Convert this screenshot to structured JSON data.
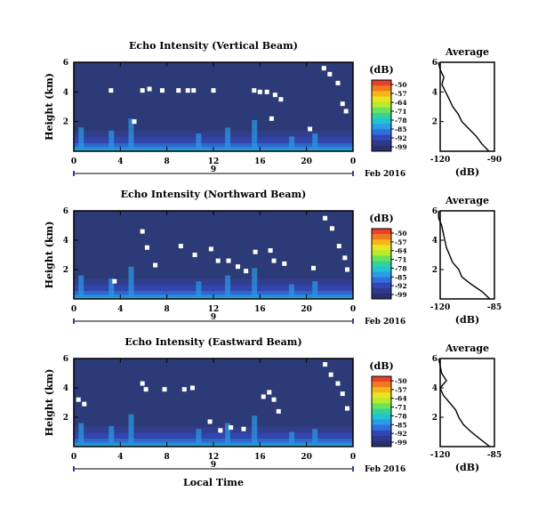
{
  "chart_data": [
    {
      "type": "heatmap",
      "title": "Echo Intensity (Vertical Beam)",
      "ylabel": "Height (km)",
      "xlabel": "",
      "x_ticks": [
        "0",
        "4",
        "8",
        "12",
        "16",
        "20",
        "0"
      ],
      "y_ticks": [
        "6",
        "4",
        "2"
      ],
      "xlim": [
        0,
        24
      ],
      "ylim": [
        0,
        6
      ],
      "date_day": "9",
      "date_label": "Feb 2016",
      "colorbar": {
        "unit": "(dB)",
        "ticks": [
          "-50",
          "-57",
          "-64",
          "-71",
          "-78",
          "-85",
          "-92",
          "-99"
        ]
      },
      "background_color": "#2d3a78",
      "gaps": [
        {
          "t": 3.2,
          "h": 4.1
        },
        {
          "t": 5.9,
          "h": 4.1
        },
        {
          "t": 6.5,
          "h": 4.2
        },
        {
          "t": 7.6,
          "h": 4.1
        },
        {
          "t": 9.0,
          "h": 4.1
        },
        {
          "t": 9.8,
          "h": 4.1
        },
        {
          "t": 10.3,
          "h": 4.1
        },
        {
          "t": 12.0,
          "h": 4.1
        },
        {
          "t": 15.5,
          "h": 4.1
        },
        {
          "t": 16.0,
          "h": 4.0
        },
        {
          "t": 16.6,
          "h": 4.0
        },
        {
          "t": 17.3,
          "h": 3.8
        },
        {
          "t": 17.8,
          "h": 3.5
        },
        {
          "t": 5.2,
          "h": 2.0
        },
        {
          "t": 17.0,
          "h": 2.2
        },
        {
          "t": 20.3,
          "h": 1.5
        },
        {
          "t": 21.5,
          "h": 5.6
        },
        {
          "t": 22.0,
          "h": 5.2
        },
        {
          "t": 22.7,
          "h": 4.6
        },
        {
          "t": 23.1,
          "h": 3.2
        },
        {
          "t": 23.4,
          "h": 2.7
        }
      ],
      "average_profile": {
        "title": "Average",
        "xlabel": "(dB)",
        "xlim": [
          -120,
          -90
        ],
        "x_ticks": [
          "-120",
          "-90"
        ],
        "y_ticks": [
          "6",
          "4",
          "2"
        ],
        "h": [
          0.0,
          0.5,
          1.0,
          1.5,
          2.0,
          2.5,
          3.0,
          3.5,
          4.0,
          4.5,
          5.0,
          5.5,
          6.0
        ],
        "db": [
          -93,
          -97,
          -100,
          -104,
          -108,
          -110,
          -113,
          -115,
          -117,
          -119,
          -118,
          -120,
          -121
        ]
      }
    },
    {
      "type": "heatmap",
      "title": "Echo Intensity (Northward Beam)",
      "ylabel": "Height (km)",
      "xlabel": "",
      "x_ticks": [
        "0",
        "4",
        "8",
        "12",
        "16",
        "20",
        "0"
      ],
      "y_ticks": [
        "6",
        "4",
        "2"
      ],
      "xlim": [
        0,
        24
      ],
      "ylim": [
        0,
        6
      ],
      "date_day": "9",
      "date_label": "Feb 2016",
      "colorbar": {
        "unit": "(dB)",
        "ticks": [
          "-50",
          "-57",
          "-64",
          "-71",
          "-78",
          "-85",
          "-92",
          "-99"
        ]
      },
      "background_color": "#2d3a78",
      "gaps": [
        {
          "t": 5.9,
          "h": 4.6
        },
        {
          "t": 6.3,
          "h": 3.5
        },
        {
          "t": 9.2,
          "h": 3.6
        },
        {
          "t": 10.4,
          "h": 3.0
        },
        {
          "t": 11.8,
          "h": 3.4
        },
        {
          "t": 12.4,
          "h": 2.6
        },
        {
          "t": 13.3,
          "h": 2.6
        },
        {
          "t": 14.1,
          "h": 2.2
        },
        {
          "t": 14.8,
          "h": 1.9
        },
        {
          "t": 15.6,
          "h": 3.2
        },
        {
          "t": 16.9,
          "h": 3.3
        },
        {
          "t": 17.2,
          "h": 2.6
        },
        {
          "t": 18.1,
          "h": 2.4
        },
        {
          "t": 3.5,
          "h": 1.2
        },
        {
          "t": 7.0,
          "h": 2.3
        },
        {
          "t": 20.6,
          "h": 2.1
        },
        {
          "t": 21.6,
          "h": 5.5
        },
        {
          "t": 22.2,
          "h": 4.8
        },
        {
          "t": 22.8,
          "h": 3.6
        },
        {
          "t": 23.3,
          "h": 2.8
        },
        {
          "t": 23.5,
          "h": 2.0
        }
      ],
      "average_profile": {
        "title": "Average",
        "xlabel": "(dB)",
        "xlim": [
          -120,
          -85
        ],
        "x_ticks": [
          "-120",
          "-85"
        ],
        "y_ticks": [
          "6",
          "4",
          "2"
        ],
        "h": [
          0.0,
          0.5,
          1.0,
          1.5,
          2.0,
          2.5,
          3.0,
          3.5,
          4.0,
          4.5,
          5.0,
          5.5,
          6.0
        ],
        "db": [
          -88,
          -93,
          -100,
          -106,
          -108,
          -112,
          -114,
          -116,
          -117,
          -118,
          -119,
          -121,
          -121
        ]
      }
    },
    {
      "type": "heatmap",
      "title": "Echo Intensity (Eastward Beam)",
      "ylabel": "Height (km)",
      "xlabel": "Local Time",
      "x_ticks": [
        "0",
        "4",
        "8",
        "12",
        "16",
        "20",
        "0"
      ],
      "y_ticks": [
        "6",
        "4",
        "2"
      ],
      "xlim": [
        0,
        24
      ],
      "ylim": [
        0,
        6
      ],
      "date_day": "9",
      "date_label": "Feb 2016",
      "colorbar": {
        "unit": "(dB)",
        "ticks": [
          "-50",
          "-57",
          "-64",
          "-71",
          "-78",
          "-85",
          "-92",
          "-99"
        ]
      },
      "background_color": "#2d3a78",
      "gaps": [
        {
          "t": 0.4,
          "h": 3.2
        },
        {
          "t": 0.9,
          "h": 2.9
        },
        {
          "t": 5.9,
          "h": 4.3
        },
        {
          "t": 6.2,
          "h": 3.9
        },
        {
          "t": 7.8,
          "h": 3.9
        },
        {
          "t": 9.5,
          "h": 3.9
        },
        {
          "t": 10.2,
          "h": 4.0
        },
        {
          "t": 11.7,
          "h": 1.7
        },
        {
          "t": 12.6,
          "h": 1.1
        },
        {
          "t": 13.5,
          "h": 1.3
        },
        {
          "t": 14.6,
          "h": 1.2
        },
        {
          "t": 16.3,
          "h": 3.4
        },
        {
          "t": 16.8,
          "h": 3.7
        },
        {
          "t": 17.2,
          "h": 3.2
        },
        {
          "t": 17.6,
          "h": 2.4
        },
        {
          "t": 21.6,
          "h": 5.6
        },
        {
          "t": 22.1,
          "h": 4.9
        },
        {
          "t": 22.7,
          "h": 4.3
        },
        {
          "t": 23.1,
          "h": 3.6
        },
        {
          "t": 23.5,
          "h": 2.6
        }
      ],
      "average_profile": {
        "title": "Average",
        "xlabel": "(dB)",
        "xlim": [
          -120,
          -85
        ],
        "x_ticks": [
          "-120",
          "-85"
        ],
        "y_ticks": [
          "6",
          "4",
          "2"
        ],
        "h": [
          0.0,
          0.5,
          1.0,
          1.5,
          2.0,
          2.5,
          3.0,
          3.5,
          4.0,
          4.5,
          5.0,
          5.5,
          6.0
        ],
        "db": [
          -88,
          -94,
          -100,
          -105,
          -108,
          -110,
          -114,
          -118,
          -120,
          -116,
          -119,
          -120,
          -121
        ]
      }
    }
  ]
}
